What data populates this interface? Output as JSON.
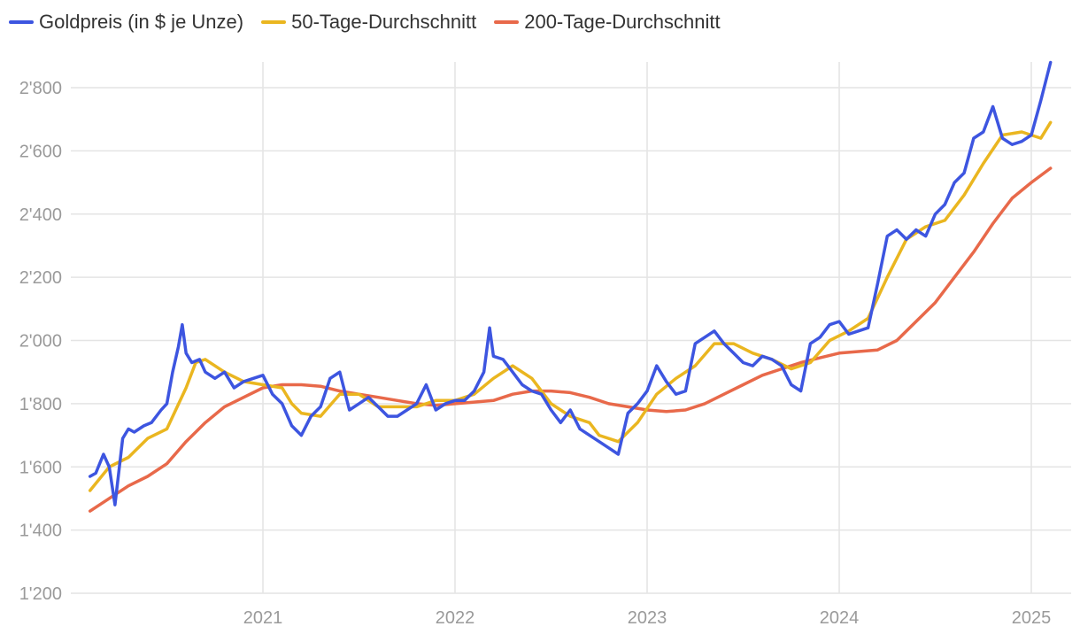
{
  "legend": {
    "gold_label": "Goldpreis (in $ je Unze)",
    "ma50_label": "50-Tage-Durchschnitt",
    "ma200_label": "200-Tage-Durchschnitt"
  },
  "colors": {
    "gold": "#3d55e0",
    "ma50": "#eab620",
    "ma200": "#e8694a",
    "grid": "#e4e4e4",
    "tick_text": "#9a9a9a"
  },
  "chart_data": {
    "type": "line",
    "title": "",
    "xlabel": "",
    "ylabel": "",
    "xlim": [
      2020.1,
      2025.2
    ],
    "ylim": [
      1200,
      2900
    ],
    "yticks": [
      1200,
      1400,
      1600,
      1800,
      2000,
      2200,
      2400,
      2600,
      2800
    ],
    "ytick_labels": [
      "1'200",
      "1'400",
      "1'600",
      "1'800",
      "2'000",
      "2'200",
      "2'400",
      "2'600",
      "2'800"
    ],
    "xticks": [
      2021,
      2022,
      2023,
      2024,
      2025
    ],
    "xtick_labels": [
      "2021",
      "2022",
      "2023",
      "2024",
      "2025"
    ],
    "grid": true,
    "legend_position": "top-left",
    "series": [
      {
        "name": "Goldpreis (in $ je Unze)",
        "color_key": "gold",
        "x": [
          2020.1,
          2020.13,
          2020.17,
          2020.2,
          2020.23,
          2020.27,
          2020.3,
          2020.33,
          2020.38,
          2020.42,
          2020.47,
          2020.5,
          2020.53,
          2020.56,
          2020.58,
          2020.6,
          2020.63,
          2020.67,
          2020.7,
          2020.75,
          2020.8,
          2020.85,
          2020.9,
          2020.95,
          2021.0,
          2021.05,
          2021.1,
          2021.15,
          2021.2,
          2021.25,
          2021.3,
          2021.35,
          2021.4,
          2021.45,
          2021.5,
          2021.55,
          2021.6,
          2021.65,
          2021.7,
          2021.75,
          2021.8,
          2021.85,
          2021.9,
          2021.95,
          2022.0,
          2022.05,
          2022.1,
          2022.15,
          2022.18,
          2022.2,
          2022.25,
          2022.3,
          2022.35,
          2022.4,
          2022.45,
          2022.5,
          2022.55,
          2022.6,
          2022.65,
          2022.7,
          2022.75,
          2022.8,
          2022.85,
          2022.9,
          2022.95,
          2023.0,
          2023.05,
          2023.1,
          2023.15,
          2023.2,
          2023.25,
          2023.3,
          2023.35,
          2023.4,
          2023.45,
          2023.5,
          2023.55,
          2023.6,
          2023.65,
          2023.7,
          2023.75,
          2023.8,
          2023.85,
          2023.9,
          2023.95,
          2024.0,
          2024.05,
          2024.1,
          2024.15,
          2024.2,
          2024.25,
          2024.3,
          2024.35,
          2024.4,
          2024.45,
          2024.5,
          2024.55,
          2024.6,
          2024.65,
          2024.7,
          2024.75,
          2024.8,
          2024.85,
          2024.9,
          2024.95,
          2025.0,
          2025.05,
          2025.1
        ],
        "values": [
          1570,
          1580,
          1640,
          1600,
          1480,
          1690,
          1720,
          1710,
          1730,
          1740,
          1780,
          1800,
          1900,
          1980,
          2050,
          1960,
          1930,
          1940,
          1900,
          1880,
          1900,
          1850,
          1870,
          1880,
          1890,
          1830,
          1800,
          1730,
          1700,
          1760,
          1790,
          1880,
          1900,
          1780,
          1800,
          1820,
          1790,
          1760,
          1760,
          1780,
          1800,
          1860,
          1780,
          1800,
          1810,
          1810,
          1840,
          1900,
          2040,
          1950,
          1940,
          1900,
          1860,
          1840,
          1830,
          1780,
          1740,
          1780,
          1720,
          1700,
          1680,
          1660,
          1640,
          1770,
          1800,
          1840,
          1920,
          1870,
          1830,
          1840,
          1990,
          2010,
          2030,
          1990,
          1960,
          1930,
          1920,
          1950,
          1940,
          1920,
          1860,
          1840,
          1990,
          2010,
          2050,
          2060,
          2020,
          2030,
          2040,
          2180,
          2330,
          2350,
          2320,
          2350,
          2330,
          2400,
          2430,
          2500,
          2530,
          2640,
          2660,
          2740,
          2640,
          2620,
          2630,
          2650,
          2760,
          2880
        ]
      },
      {
        "name": "50-Tage-Durchschnitt",
        "color_key": "ma50",
        "x": [
          2020.1,
          2020.2,
          2020.3,
          2020.4,
          2020.5,
          2020.6,
          2020.65,
          2020.7,
          2020.8,
          2020.9,
          2021.0,
          2021.1,
          2021.15,
          2021.2,
          2021.3,
          2021.4,
          2021.5,
          2021.6,
          2021.7,
          2021.8,
          2021.9,
          2022.0,
          2022.1,
          2022.2,
          2022.3,
          2022.4,
          2022.5,
          2022.6,
          2022.7,
          2022.75,
          2022.85,
          2022.95,
          2023.05,
          2023.15,
          2023.25,
          2023.35,
          2023.45,
          2023.55,
          2023.65,
          2023.75,
          2023.85,
          2023.95,
          2024.05,
          2024.15,
          2024.25,
          2024.35,
          2024.45,
          2024.55,
          2024.65,
          2024.75,
          2024.85,
          2024.95,
          2025.05,
          2025.1
        ],
        "values": [
          1525,
          1600,
          1630,
          1690,
          1720,
          1850,
          1930,
          1940,
          1900,
          1870,
          1860,
          1850,
          1800,
          1770,
          1760,
          1830,
          1830,
          1790,
          1790,
          1790,
          1810,
          1810,
          1830,
          1880,
          1920,
          1880,
          1800,
          1760,
          1740,
          1700,
          1680,
          1740,
          1830,
          1880,
          1920,
          1990,
          1990,
          1960,
          1940,
          1910,
          1930,
          2000,
          2030,
          2070,
          2200,
          2320,
          2360,
          2380,
          2460,
          2560,
          2650,
          2660,
          2640,
          2690
        ]
      },
      {
        "name": "200-Tage-Durchschnitt",
        "color_key": "ma200",
        "x": [
          2020.1,
          2020.2,
          2020.3,
          2020.4,
          2020.5,
          2020.6,
          2020.7,
          2020.8,
          2020.9,
          2021.0,
          2021.1,
          2021.2,
          2021.3,
          2021.4,
          2021.5,
          2021.6,
          2021.7,
          2021.8,
          2021.9,
          2022.0,
          2022.1,
          2022.2,
          2022.3,
          2022.4,
          2022.5,
          2022.6,
          2022.7,
          2022.8,
          2022.9,
          2023.0,
          2023.1,
          2023.2,
          2023.3,
          2023.4,
          2023.5,
          2023.6,
          2023.7,
          2023.8,
          2023.9,
          2024.0,
          2024.1,
          2024.2,
          2024.3,
          2024.4,
          2024.5,
          2024.6,
          2024.7,
          2024.8,
          2024.9,
          2025.0,
          2025.1
        ],
        "values": [
          1460,
          1500,
          1540,
          1570,
          1610,
          1680,
          1740,
          1790,
          1820,
          1850,
          1860,
          1860,
          1855,
          1840,
          1830,
          1820,
          1810,
          1800,
          1795,
          1800,
          1805,
          1810,
          1830,
          1840,
          1840,
          1835,
          1820,
          1800,
          1790,
          1780,
          1775,
          1780,
          1800,
          1830,
          1860,
          1890,
          1910,
          1930,
          1945,
          1960,
          1965,
          1970,
          2000,
          2060,
          2120,
          2200,
          2280,
          2370,
          2450,
          2500,
          2545
        ]
      }
    ]
  }
}
